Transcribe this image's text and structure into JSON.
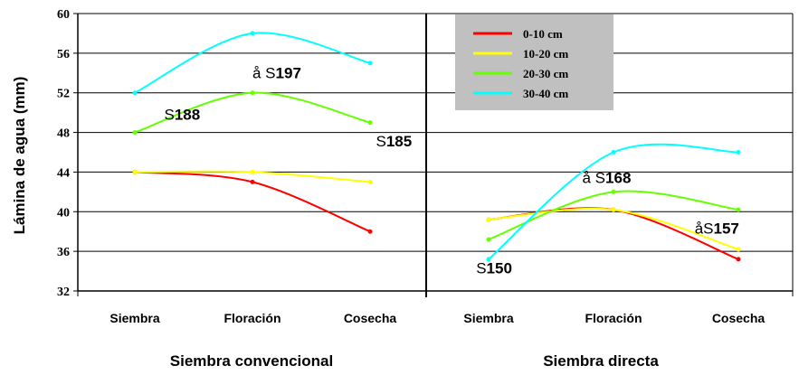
{
  "chart_data": {
    "type": "line",
    "ylabel": "Lámina de agua  (mm)",
    "ylim": [
      32,
      60
    ],
    "yticks": [
      "32",
      "36",
      "40",
      "44",
      "48",
      "52",
      "56",
      "60"
    ],
    "categories": [
      "Siembra",
      "Floración",
      "Cosecha"
    ],
    "legend": {
      "position": "top-right",
      "entries": [
        {
          "label": "0-10 cm",
          "color": "#ff0000"
        },
        {
          "label": "10-20 cm",
          "color": "#ffff00"
        },
        {
          "label": "20-30 cm",
          "color": "#66ff00"
        },
        {
          "label": "30-40 cm",
          "color": "#00ffff"
        }
      ]
    },
    "panels": [
      {
        "title": "Siembra convencional",
        "series": [
          {
            "name": "0-10 cm",
            "color": "#ff0000",
            "values": [
              44,
              43,
              38
            ]
          },
          {
            "name": "10-20 cm",
            "color": "#ffff00",
            "values": [
              44,
              44,
              43
            ]
          },
          {
            "name": "20-30 cm",
            "color": "#66ff00",
            "values": [
              48,
              52,
              49
            ]
          },
          {
            "name": "30-40 cm",
            "color": "#00ffff",
            "values": [
              52,
              58,
              55
            ]
          }
        ],
        "annotations": [
          {
            "prefix": "S",
            "num": "188",
            "x": 0.25,
            "y": 49.3
          },
          {
            "prefix": "å S",
            "num": "197",
            "x": 1.0,
            "y": 53.5
          },
          {
            "prefix": "S",
            "num": "185",
            "x": 2.05,
            "y": 46.6
          }
        ]
      },
      {
        "title": "Siembra directa",
        "series": [
          {
            "name": "0-10 cm",
            "color": "#ff0000",
            "values": [
              39.2,
              40.2,
              35.2
            ]
          },
          {
            "name": "10-20 cm",
            "color": "#ffff00",
            "values": [
              39.2,
              40.2,
              36.2
            ]
          },
          {
            "name": "20-30 cm",
            "color": "#66ff00",
            "values": [
              37.2,
              42,
              40.2
            ]
          },
          {
            "name": "30-40 cm",
            "color": "#00ffff",
            "values": [
              35.2,
              46,
              46
            ]
          }
        ],
        "annotations": [
          {
            "prefix": "S",
            "num": "150",
            "x": -0.1,
            "y": 33.8
          },
          {
            "prefix": "å  S",
            "num": "168",
            "x": 0.75,
            "y": 42.9
          },
          {
            "prefix": "åS",
            "num": "157",
            "x": 1.65,
            "y": 37.8
          }
        ]
      }
    ]
  }
}
